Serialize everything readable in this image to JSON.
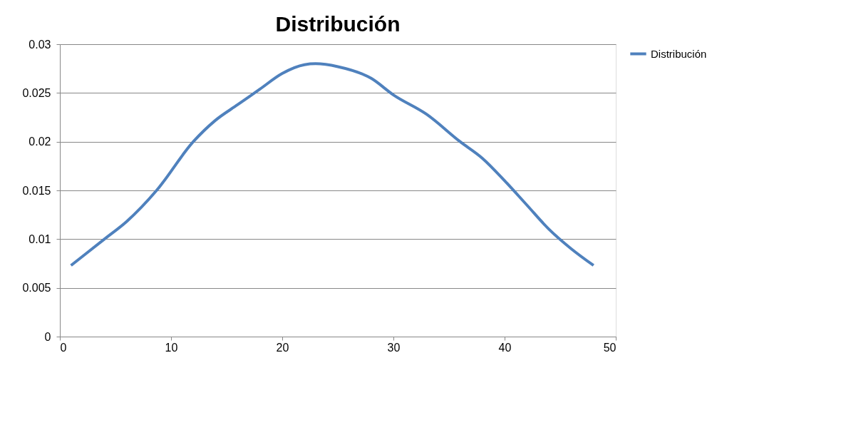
{
  "chart_data": {
    "type": "line",
    "title": "Distribución",
    "x": [
      1,
      4,
      6,
      8.7,
      12,
      14,
      16,
      18,
      20,
      22,
      23,
      25,
      28,
      30,
      33,
      36,
      38,
      40,
      42,
      44,
      46,
      48
    ],
    "series": [
      {
        "name": "Distribución",
        "color": "#4f81bd",
        "values": [
          0.0073,
          0.01,
          0.0118,
          0.015,
          0.02,
          0.0222,
          0.0238,
          0.0254,
          0.027,
          0.0279,
          0.028,
          0.0277,
          0.0265,
          0.0248,
          0.0228,
          0.02,
          0.0183,
          0.016,
          0.0135,
          0.011,
          0.009,
          0.0073
        ]
      }
    ],
    "xlim": [
      0,
      50
    ],
    "xticks": [
      0,
      10,
      20,
      30,
      40,
      50
    ],
    "ylim": [
      0,
      0.03
    ],
    "yticks": [
      0,
      0.005,
      0.01,
      0.015,
      0.02,
      0.025,
      0.03
    ],
    "grid": "y",
    "legend": "right",
    "marker": "none",
    "line_style": "solid"
  }
}
